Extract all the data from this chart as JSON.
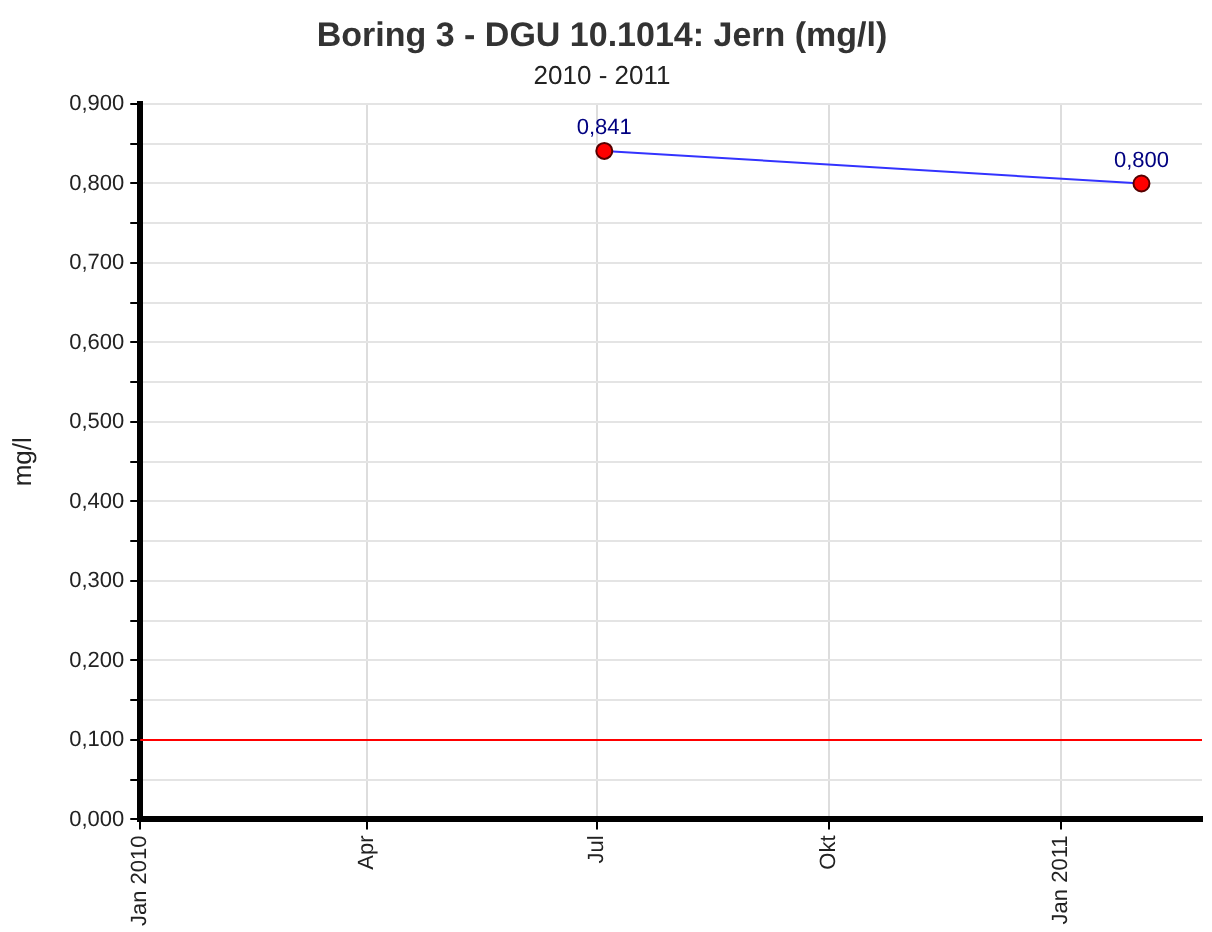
{
  "chart_data": {
    "type": "line",
    "title": "Boring 3 - DGU 10.1014: Jern (mg/l)",
    "subtitle": "2010 - 2011",
    "ylabel": "mg/l",
    "x": [
      "2010-07-04",
      "2011-02-02"
    ],
    "series": [
      {
        "color": "#3333ff",
        "colors": [
          "#ff0000",
          "#ff0000"
        ],
        "values": [
          0.841,
          0.8
        ],
        "value_labels": [
          "0,841",
          "0,800"
        ]
      }
    ],
    "xlim": [
      "2010-01-01",
      "2011-02-26"
    ],
    "xticks": [
      {
        "value": "2010-01-01",
        "label": "Jan 2010"
      },
      {
        "value": "2010-04-01",
        "label": "Apr"
      },
      {
        "value": "2010-07-01",
        "label": "Jul"
      },
      {
        "value": "2010-10-01",
        "label": "Okt"
      },
      {
        "value": "2011-01-01",
        "label": "Jan 2011"
      }
    ],
    "ylim": [
      0,
      0.9
    ],
    "yticks": [
      {
        "value": 0,
        "label": "0,000"
      },
      {
        "value": 0.05,
        "label": null
      },
      {
        "value": 0.1,
        "label": "0,100"
      },
      {
        "value": 0.15,
        "label": null
      },
      {
        "value": 0.2,
        "label": "0,200"
      },
      {
        "value": 0.25,
        "label": null
      },
      {
        "value": 0.3,
        "label": "0,300"
      },
      {
        "value": 0.35,
        "label": null
      },
      {
        "value": 0.4,
        "label": "0,400"
      },
      {
        "value": 0.45,
        "label": null
      },
      {
        "value": 0.5,
        "label": "0,500"
      },
      {
        "value": 0.55,
        "label": null
      },
      {
        "value": 0.6,
        "label": "0,600"
      },
      {
        "value": 0.65,
        "label": null
      },
      {
        "value": 0.7,
        "label": "0,700"
      },
      {
        "value": 0.75,
        "label": null
      },
      {
        "value": 0.8,
        "label": "0,800"
      },
      {
        "value": 0.85,
        "label": null
      },
      {
        "value": 0.9,
        "label": "0,900"
      }
    ],
    "ref_lines": [
      {
        "axis": "y",
        "value": 0.1,
        "color": "#ff0000"
      }
    ],
    "grid": true,
    "legend": false,
    "marker": "circle",
    "line_style": "solid"
  }
}
